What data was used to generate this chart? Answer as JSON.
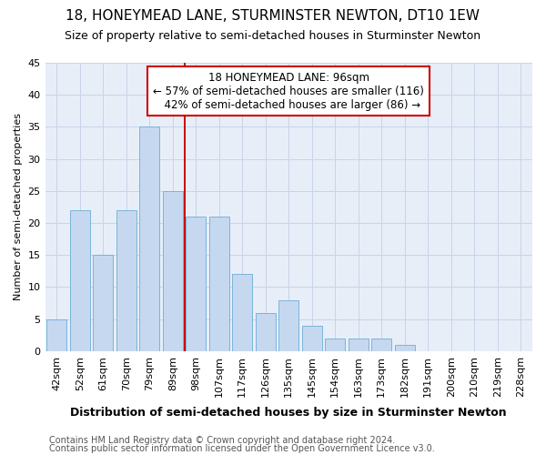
{
  "title": "18, HONEYMEAD LANE, STURMINSTER NEWTON, DT10 1EW",
  "subtitle": "Size of property relative to semi-detached houses in Sturminster Newton",
  "xlabel": "Distribution of semi-detached houses by size in Sturminster Newton",
  "ylabel": "Number of semi-detached properties",
  "categories": [
    "42sqm",
    "52sqm",
    "61sqm",
    "70sqm",
    "79sqm",
    "89sqm",
    "98sqm",
    "107sqm",
    "117sqm",
    "126sqm",
    "135sqm",
    "145sqm",
    "154sqm",
    "163sqm",
    "173sqm",
    "182sqm",
    "191sqm",
    "200sqm",
    "210sqm",
    "219sqm",
    "228sqm"
  ],
  "values": [
    5,
    22,
    15,
    22,
    35,
    25,
    21,
    21,
    12,
    6,
    8,
    4,
    2,
    2,
    2,
    1,
    0,
    0,
    0,
    0,
    0
  ],
  "bar_color": "#c5d8f0",
  "bar_edge_color": "#6baed6",
  "vline_x": 5.5,
  "vline_color": "#cc0000",
  "annotation_text": "18 HONEYMEAD LANE: 96sqm\n← 57% of semi-detached houses are smaller (116)\n  42% of semi-detached houses are larger (86) →",
  "annotation_box_color": "#ffffff",
  "annotation_box_edge": "#cc0000",
  "ylim": [
    0,
    45
  ],
  "yticks": [
    0,
    5,
    10,
    15,
    20,
    25,
    30,
    35,
    40,
    45
  ],
  "grid_color": "#c8d4e8",
  "background_color": "#ffffff",
  "plot_bg_color": "#e8eef8",
  "footer1": "Contains HM Land Registry data © Crown copyright and database right 2024.",
  "footer2": "Contains public sector information licensed under the Open Government Licence v3.0.",
  "title_fontsize": 11,
  "subtitle_fontsize": 9,
  "xlabel_fontsize": 9,
  "ylabel_fontsize": 8,
  "tick_fontsize": 8,
  "annotation_fontsize": 8.5,
  "footer_fontsize": 7
}
